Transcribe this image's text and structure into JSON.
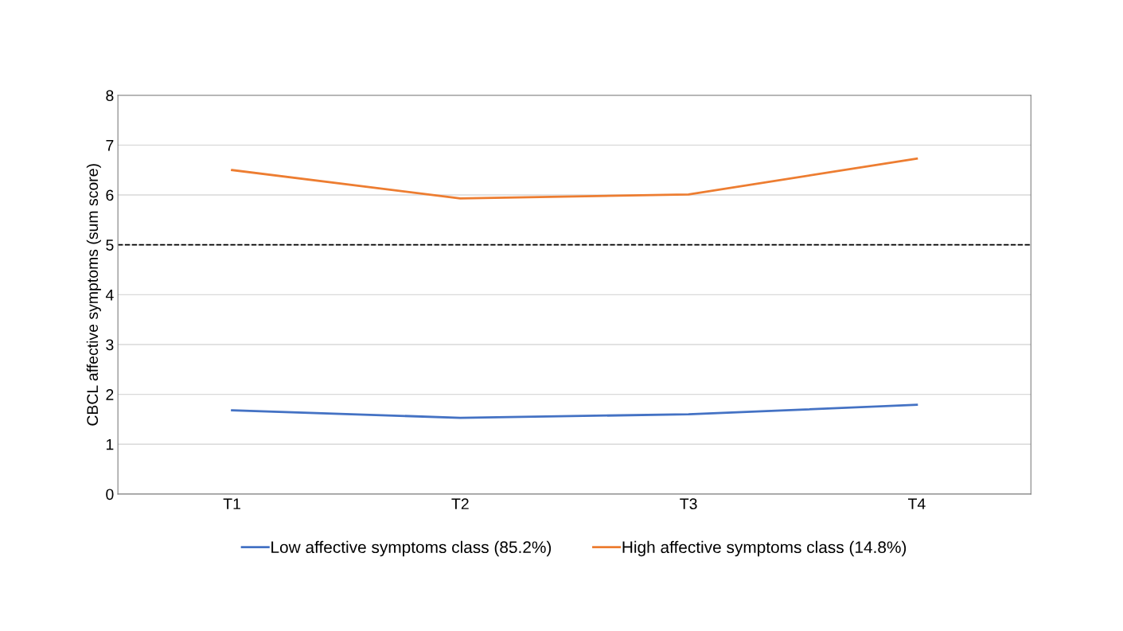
{
  "chart_data": {
    "type": "line",
    "ylabel": "CBCL affective symptoms (sum score)",
    "categories": [
      "T1",
      "T2",
      "T3",
      "T4"
    ],
    "series": [
      {
        "name": "Low affective symptoms class (85.2%)",
        "color": "#4472c4",
        "values": [
          1.68,
          1.53,
          1.6,
          1.79
        ]
      },
      {
        "name": "High affective symptoms class (14.8%)",
        "color": "#ed7d31",
        "values": [
          6.5,
          5.93,
          6.01,
          6.73
        ]
      }
    ],
    "ylim": [
      0,
      8
    ],
    "yticks": [
      0,
      1,
      2,
      3,
      4,
      5,
      6,
      7,
      8
    ],
    "grid": "y",
    "legend": "bottom",
    "marker": "none",
    "line_style": "solid",
    "ref_lines": [
      {
        "axis": "y",
        "value": 5,
        "label": null,
        "color": "#000000",
        "line_style": "dashed"
      }
    ]
  }
}
